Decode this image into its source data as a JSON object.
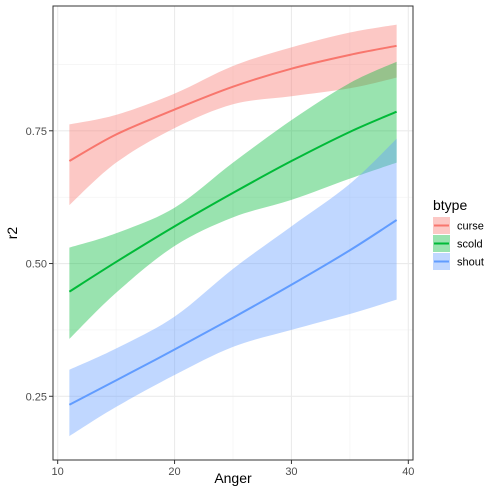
{
  "chart_data": {
    "type": "line",
    "xlabel": "Anger",
    "ylabel": "r2",
    "xlim": [
      9.6,
      40.4
    ],
    "ylim": [
      0.13,
      0.985
    ],
    "x_ticks": [
      10,
      20,
      30,
      40
    ],
    "x_tick_labels": [
      "10",
      "20",
      "30",
      "40"
    ],
    "y_ticks": [
      0.25,
      0.5,
      0.75
    ],
    "y_tick_labels": [
      "0.25",
      "0.50",
      "0.75"
    ],
    "grid": true,
    "legend": {
      "title": "btype",
      "position": "right"
    },
    "x": [
      11,
      15,
      20,
      25,
      30,
      35,
      39
    ],
    "series": [
      {
        "name": "curse",
        "color": "#F8766D",
        "fill": "#F8766D",
        "values": [
          0.693,
          0.743,
          0.79,
          0.833,
          0.867,
          0.893,
          0.91
        ],
        "lower": [
          0.61,
          0.69,
          0.755,
          0.8,
          0.815,
          0.83,
          0.85
        ],
        "upper": [
          0.762,
          0.78,
          0.82,
          0.872,
          0.907,
          0.935,
          0.95
        ]
      },
      {
        "name": "scold",
        "color": "#00BA38",
        "fill": "#00BA38",
        "values": [
          0.447,
          0.503,
          0.57,
          0.633,
          0.693,
          0.748,
          0.786
        ],
        "lower": [
          0.358,
          0.445,
          0.533,
          0.587,
          0.62,
          0.66,
          0.69
        ],
        "upper": [
          0.53,
          0.557,
          0.605,
          0.69,
          0.77,
          0.84,
          0.88
        ]
      },
      {
        "name": "shout",
        "color": "#619CFF",
        "fill": "#619CFF",
        "values": [
          0.234,
          0.28,
          0.338,
          0.398,
          0.46,
          0.525,
          0.582
        ],
        "lower": [
          0.175,
          0.23,
          0.29,
          0.343,
          0.375,
          0.405,
          0.432
        ],
        "upper": [
          0.3,
          0.34,
          0.4,
          0.49,
          0.57,
          0.65,
          0.735
        ]
      }
    ]
  }
}
